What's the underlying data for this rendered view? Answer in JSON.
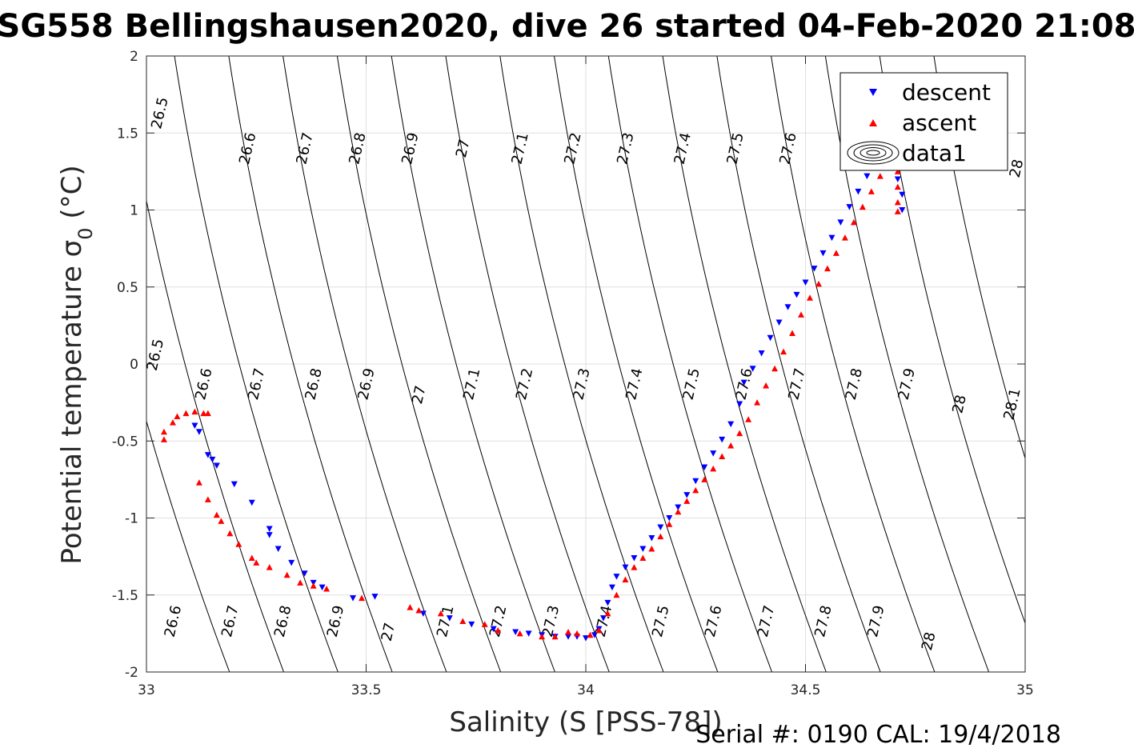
{
  "chart_data": {
    "type": "scatter",
    "title": "SG558 Bellingshausen2020, dive 26 started 04-Feb-2020 21:08",
    "xlabel": "Salinity (S [PSS-78])",
    "ylabel": "Potential temperature σ₀ (°C)",
    "ylabel_main": "Potential temperature ",
    "ylabel_sigma": "σ",
    "ylabel_sub": "0",
    "ylabel_unit": " (°C)",
    "xlim": [
      33,
      35
    ],
    "ylim": [
      -2,
      2
    ],
    "x_ticks": [
      33,
      33.5,
      34,
      34.5,
      35
    ],
    "x_tick_labels": [
      "33",
      "33.5",
      "34",
      "34.5",
      "35"
    ],
    "y_ticks": [
      -2,
      -1.5,
      -1,
      -0.5,
      0,
      0.5,
      1,
      1.5,
      2
    ],
    "y_tick_labels": [
      "-2",
      "-1.5",
      "-1",
      "-0.5",
      "0",
      "0.5",
      "1",
      "1.5",
      "2"
    ],
    "grid": true,
    "legend_position": "top-right",
    "legend": [
      {
        "label": "descent",
        "marker": "triangle-down",
        "color": "#0000ff"
      },
      {
        "label": "ascent",
        "marker": "triangle-up",
        "color": "#ff0000"
      },
      {
        "label": "data1",
        "marker": "contour-icon",
        "color": "#000000"
      }
    ],
    "isopycnals": {
      "levels": [
        26.5,
        26.6,
        26.7,
        26.8,
        26.9,
        27.0,
        27.1,
        27.2,
        27.3,
        27.4,
        27.5,
        27.6,
        27.7,
        27.8,
        27.9,
        28.0,
        28.1
      ],
      "line_color": "#000000"
    },
    "contour_labels": [
      {
        "text": "26.5",
        "x": 33.03,
        "y": 1.63
      },
      {
        "text": "26.6",
        "x": 33.23,
        "y": 1.4
      },
      {
        "text": "26.7",
        "x": 33.36,
        "y": 1.4
      },
      {
        "text": "26.8",
        "x": 33.48,
        "y": 1.4
      },
      {
        "text": "26.9",
        "x": 33.6,
        "y": 1.4
      },
      {
        "text": "27",
        "x": 33.72,
        "y": 1.4
      },
      {
        "text": "27.1",
        "x": 33.85,
        "y": 1.4
      },
      {
        "text": "27.2",
        "x": 33.97,
        "y": 1.4
      },
      {
        "text": "27.3",
        "x": 34.09,
        "y": 1.4
      },
      {
        "text": "27.4",
        "x": 34.22,
        "y": 1.4
      },
      {
        "text": "27.5",
        "x": 34.34,
        "y": 1.4
      },
      {
        "text": "27.6",
        "x": 34.46,
        "y": 1.4
      },
      {
        "text": "28",
        "x": 34.98,
        "y": 1.27
      },
      {
        "text": "26.5",
        "x": 33.02,
        "y": 0.06
      },
      {
        "text": "26.6",
        "x": 33.13,
        "y": -0.13
      },
      {
        "text": "26.7",
        "x": 33.25,
        "y": -0.13
      },
      {
        "text": "26.8",
        "x": 33.38,
        "y": -0.13
      },
      {
        "text": "26.9",
        "x": 33.5,
        "y": -0.13
      },
      {
        "text": "27",
        "x": 33.62,
        "y": -0.2
      },
      {
        "text": "27.1",
        "x": 33.74,
        "y": -0.13
      },
      {
        "text": "27.2",
        "x": 33.86,
        "y": -0.13
      },
      {
        "text": "27.3",
        "x": 33.99,
        "y": -0.13
      },
      {
        "text": "27.4",
        "x": 34.11,
        "y": -0.13
      },
      {
        "text": "27.5",
        "x": 34.24,
        "y": -0.13
      },
      {
        "text": "27.6",
        "x": 34.36,
        "y": -0.13
      },
      {
        "text": "27.7",
        "x": 34.48,
        "y": -0.13
      },
      {
        "text": "27.8",
        "x": 34.61,
        "y": -0.13
      },
      {
        "text": "27.9",
        "x": 34.73,
        "y": -0.13
      },
      {
        "text": "28",
        "x": 34.85,
        "y": -0.26
      },
      {
        "text": "28.1",
        "x": 34.97,
        "y": -0.26
      },
      {
        "text": "26.6",
        "x": 33.06,
        "y": -1.67
      },
      {
        "text": "26.7",
        "x": 33.19,
        "y": -1.67
      },
      {
        "text": "26.8",
        "x": 33.31,
        "y": -1.67
      },
      {
        "text": "26.9",
        "x": 33.43,
        "y": -1.67
      },
      {
        "text": "27",
        "x": 33.55,
        "y": -1.74
      },
      {
        "text": "27.1",
        "x": 33.68,
        "y": -1.67
      },
      {
        "text": "27.2",
        "x": 33.8,
        "y": -1.67
      },
      {
        "text": "27.3",
        "x": 33.92,
        "y": -1.67
      },
      {
        "text": "27.4",
        "x": 34.04,
        "y": -1.67
      },
      {
        "text": "27.5",
        "x": 34.17,
        "y": -1.67
      },
      {
        "text": "27.6",
        "x": 34.29,
        "y": -1.67
      },
      {
        "text": "27.7",
        "x": 34.41,
        "y": -1.67
      },
      {
        "text": "27.8",
        "x": 34.54,
        "y": -1.67
      },
      {
        "text": "27.9",
        "x": 34.66,
        "y": -1.67
      },
      {
        "text": "28",
        "x": 34.78,
        "y": -1.8
      }
    ],
    "series": [
      {
        "name": "descent",
        "marker": "triangle-down",
        "color": "#0000ff",
        "points": [
          [
            33.11,
            -0.4
          ],
          [
            33.12,
            -0.44
          ],
          [
            33.14,
            -0.59
          ],
          [
            33.15,
            -0.62
          ],
          [
            33.16,
            -0.66
          ],
          [
            33.2,
            -0.78
          ],
          [
            33.24,
            -0.9
          ],
          [
            33.28,
            -1.07
          ],
          [
            33.28,
            -1.11
          ],
          [
            33.3,
            -1.2
          ],
          [
            33.33,
            -1.29
          ],
          [
            33.36,
            -1.36
          ],
          [
            33.38,
            -1.42
          ],
          [
            33.4,
            -1.45
          ],
          [
            33.47,
            -1.52
          ],
          [
            33.52,
            -1.51
          ],
          [
            33.63,
            -1.62
          ],
          [
            33.69,
            -1.65
          ],
          [
            33.74,
            -1.69
          ],
          [
            33.79,
            -1.72
          ],
          [
            33.84,
            -1.74
          ],
          [
            33.87,
            -1.75
          ],
          [
            33.9,
            -1.76
          ],
          [
            33.93,
            -1.77
          ],
          [
            33.96,
            -1.77
          ],
          [
            33.98,
            -1.77
          ],
          [
            34.0,
            -1.78
          ],
          [
            34.02,
            -1.76
          ],
          [
            34.03,
            -1.72
          ],
          [
            34.04,
            -1.65
          ],
          [
            34.05,
            -1.55
          ],
          [
            34.06,
            -1.45
          ],
          [
            34.07,
            -1.38
          ],
          [
            34.09,
            -1.32
          ],
          [
            34.11,
            -1.26
          ],
          [
            34.13,
            -1.2
          ],
          [
            34.15,
            -1.13
          ],
          [
            34.17,
            -1.06
          ],
          [
            34.19,
            -1.0
          ],
          [
            34.21,
            -0.93
          ],
          [
            34.23,
            -0.85
          ],
          [
            34.25,
            -0.76
          ],
          [
            34.27,
            -0.67
          ],
          [
            34.29,
            -0.58
          ],
          [
            34.31,
            -0.49
          ],
          [
            34.33,
            -0.39
          ],
          [
            34.35,
            -0.26
          ],
          [
            34.36,
            -0.12
          ],
          [
            34.38,
            -0.03
          ],
          [
            34.4,
            0.07
          ],
          [
            34.42,
            0.17
          ],
          [
            34.44,
            0.27
          ],
          [
            34.46,
            0.37
          ],
          [
            34.48,
            0.45
          ],
          [
            34.5,
            0.53
          ],
          [
            34.52,
            0.62
          ],
          [
            34.54,
            0.72
          ],
          [
            34.56,
            0.82
          ],
          [
            34.58,
            0.92
          ],
          [
            34.6,
            1.02
          ],
          [
            34.62,
            1.12
          ],
          [
            34.64,
            1.22
          ],
          [
            34.66,
            1.3
          ],
          [
            34.68,
            1.36
          ],
          [
            34.7,
            1.3
          ],
          [
            34.71,
            1.2
          ],
          [
            34.72,
            1.1
          ],
          [
            34.72,
            1.0
          ]
        ]
      },
      {
        "name": "ascent",
        "marker": "triangle-up",
        "color": "#ff0000",
        "points": [
          [
            33.04,
            -0.49
          ],
          [
            33.04,
            -0.44
          ],
          [
            33.06,
            -0.38
          ],
          [
            33.07,
            -0.34
          ],
          [
            33.09,
            -0.32
          ],
          [
            33.11,
            -0.31
          ],
          [
            33.13,
            -0.32
          ],
          [
            33.14,
            -0.32
          ],
          [
            33.12,
            -0.77
          ],
          [
            33.14,
            -0.88
          ],
          [
            33.16,
            -0.98
          ],
          [
            33.17,
            -1.02
          ],
          [
            33.19,
            -1.1
          ],
          [
            33.21,
            -1.17
          ],
          [
            33.24,
            -1.26
          ],
          [
            33.25,
            -1.29
          ],
          [
            33.28,
            -1.32
          ],
          [
            33.32,
            -1.37
          ],
          [
            33.35,
            -1.42
          ],
          [
            33.38,
            -1.44
          ],
          [
            33.41,
            -1.46
          ],
          [
            33.49,
            -1.52
          ],
          [
            33.6,
            -1.58
          ],
          [
            33.62,
            -1.6
          ],
          [
            33.67,
            -1.62
          ],
          [
            33.72,
            -1.67
          ],
          [
            33.77,
            -1.69
          ],
          [
            33.8,
            -1.73
          ],
          [
            33.85,
            -1.75
          ],
          [
            33.9,
            -1.77
          ],
          [
            33.93,
            -1.77
          ],
          [
            33.96,
            -1.74
          ],
          [
            33.98,
            -1.75
          ],
          [
            34.01,
            -1.76
          ],
          [
            34.03,
            -1.73
          ],
          [
            34.05,
            -1.62
          ],
          [
            34.07,
            -1.5
          ],
          [
            34.09,
            -1.4
          ],
          [
            34.11,
            -1.32
          ],
          [
            34.13,
            -1.26
          ],
          [
            34.15,
            -1.2
          ],
          [
            34.17,
            -1.12
          ],
          [
            34.19,
            -1.04
          ],
          [
            34.21,
            -0.96
          ],
          [
            34.23,
            -0.89
          ],
          [
            34.25,
            -0.82
          ],
          [
            34.27,
            -0.75
          ],
          [
            34.29,
            -0.68
          ],
          [
            34.31,
            -0.6
          ],
          [
            34.33,
            -0.53
          ],
          [
            34.35,
            -0.45
          ],
          [
            34.37,
            -0.36
          ],
          [
            34.39,
            -0.25
          ],
          [
            34.41,
            -0.14
          ],
          [
            34.43,
            -0.03
          ],
          [
            34.45,
            0.08
          ],
          [
            34.47,
            0.2
          ],
          [
            34.49,
            0.32
          ],
          [
            34.51,
            0.43
          ],
          [
            34.53,
            0.52
          ],
          [
            34.55,
            0.62
          ],
          [
            34.57,
            0.72
          ],
          [
            34.59,
            0.82
          ],
          [
            34.61,
            0.92
          ],
          [
            34.63,
            1.02
          ],
          [
            34.65,
            1.12
          ],
          [
            34.67,
            1.22
          ],
          [
            34.69,
            1.3
          ],
          [
            34.71,
            1.25
          ],
          [
            34.71,
            1.15
          ],
          [
            34.71,
            1.05
          ],
          [
            34.71,
            0.99
          ]
        ]
      }
    ],
    "footer": "Serial #: 0190  CAL: 19/4/2018"
  }
}
